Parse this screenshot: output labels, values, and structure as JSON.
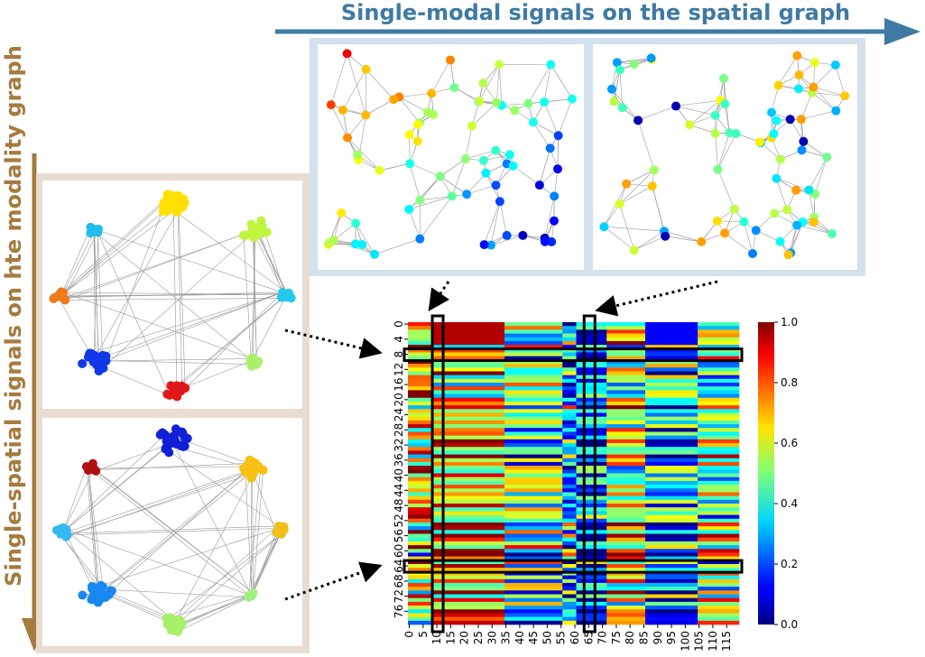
{
  "top_arrow_label": "Single-modal signals on the spatial graph",
  "left_arrow_label": "Single-spatial signals on hte modality graph",
  "colors": {
    "top_arrow": "#3e7aa3",
    "left_arrow": "#a57b3e",
    "top_panel_border": "#d2e1ec",
    "left_panel_border": "#e8ddd0"
  },
  "heatmap": {
    "rows": 80,
    "cols": 120,
    "colormap": "jet",
    "y_ticks": [
      "0",
      "4",
      "8",
      "12",
      "16",
      "20",
      "24",
      "28",
      "32",
      "36",
      "40",
      "44",
      "48",
      "52",
      "56",
      "60",
      "64",
      "68",
      "72",
      "76"
    ],
    "x_ticks": [
      "0",
      "5",
      "10",
      "15",
      "20",
      "25",
      "30",
      "35",
      "40",
      "45",
      "50",
      "55",
      "60",
      "65",
      "70",
      "75",
      "80",
      "85",
      "90",
      "95",
      "100",
      "105",
      "110",
      "115"
    ],
    "colorbar_ticks": [
      "0.0",
      "0.2",
      "0.4",
      "0.6",
      "0.8",
      "1.0"
    ],
    "highlight_columns": [
      10,
      65
    ],
    "highlight_rows": [
      8,
      64
    ]
  },
  "modality_graph_top": {
    "cluster_colors": [
      "#ffe000",
      "#bff53c",
      "#22bcf0",
      "#f07a1a",
      "#1038e8",
      "#e01818",
      "#a8f068",
      "#24c8e8"
    ]
  },
  "modality_graph_bottom": {
    "cluster_colors": [
      "#1020d8",
      "#f8c010",
      "#b01010",
      "#38b8f0",
      "#1888f0",
      "#a8f068",
      "#a0f080",
      "#f0c018"
    ]
  }
}
